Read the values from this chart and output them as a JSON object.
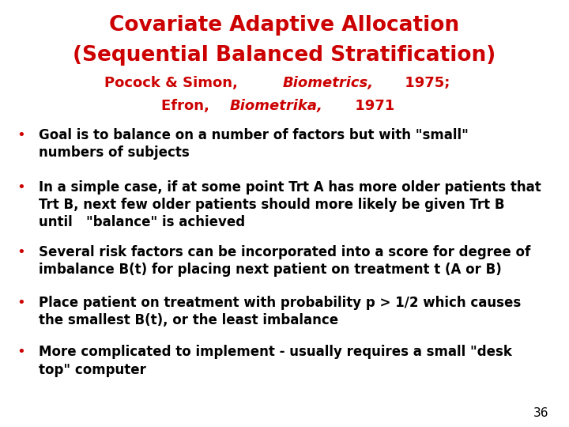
{
  "title_line1": "Covariate Adaptive Allocation",
  "title_line2": "(Sequential Balanced Stratification)",
  "title_color": "#CC0000",
  "subtitle_color": "#CC0000",
  "bullet_color": "#CC0000",
  "text_color": "#000000",
  "background_color": "#FFFFFF",
  "bullet_points": [
    "Goal is to balance on a number of factors but with \"small\"\nnumbers of subjects",
    "In a simple case, if at some point Trt A has more older patients that\nTrt B, next few older patients should more likely be given Trt B\nuntil   \"balance\" is achieved",
    "Several risk factors can be incorporated into a score for degree of\nimbalance B(t) for placing next patient on treatment t (A or B)",
    "Place patient on treatment with probability p > 1/2 which causes\nthe smallest B(t), or the least imbalance",
    "More complicated to implement - usually requires a small \"desk\ntop\" computer"
  ],
  "page_number": "36",
  "font_size_title": 19,
  "font_size_subtitle": 13,
  "font_size_bullet": 12,
  "font_size_page": 11
}
